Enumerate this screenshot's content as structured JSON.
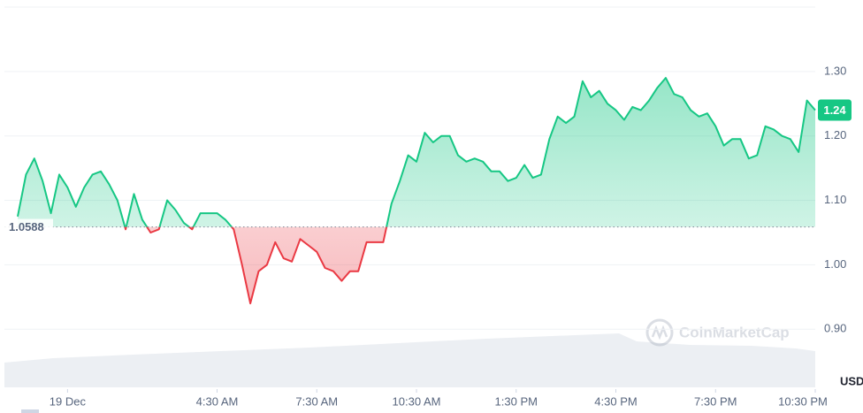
{
  "chart_data": {
    "type": "baseline-line",
    "x": [
      -1.5,
      -1.25,
      -1,
      -0.75,
      -0.5,
      -0.25,
      0,
      0.25,
      0.5,
      0.75,
      1,
      1.25,
      1.5,
      1.75,
      2,
      2.25,
      2.5,
      2.75,
      3,
      3.25,
      3.5,
      3.75,
      4,
      4.25,
      4.5,
      4.75,
      5,
      5.25,
      5.5,
      5.75,
      6,
      6.25,
      6.5,
      6.75,
      7,
      7.25,
      7.5,
      7.75,
      8,
      8.25,
      8.5,
      8.75,
      9,
      9.25,
      9.5,
      9.75,
      10,
      10.25,
      10.5,
      10.75,
      11,
      11.25,
      11.5,
      11.75,
      12,
      12.25,
      12.5,
      12.75,
      13,
      13.25,
      13.5,
      13.75,
      14,
      14.25,
      14.5,
      14.75,
      15,
      15.25,
      15.5,
      15.75,
      16,
      16.25,
      16.5,
      16.75,
      17,
      17.25,
      17.5,
      17.75,
      18,
      18.25,
      18.5,
      18.75,
      19,
      19.25,
      19.5,
      19.75,
      20,
      20.25,
      20.5,
      20.75,
      21,
      21.25,
      21.5,
      21.75,
      22,
      22.25,
      22.5
    ],
    "values": [
      1.075,
      1.14,
      1.165,
      1.13,
      1.08,
      1.14,
      1.12,
      1.09,
      1.12,
      1.14,
      1.145,
      1.125,
      1.1,
      1.055,
      1.11,
      1.07,
      1.05,
      1.055,
      1.1,
      1.085,
      1.065,
      1.055,
      1.08,
      1.08,
      1.08,
      1.07,
      1.055,
      1.0,
      0.94,
      0.99,
      1.0,
      1.035,
      1.01,
      1.005,
      1.04,
      1.03,
      1.02,
      0.995,
      0.99,
      0.975,
      0.99,
      0.99,
      1.035,
      1.035,
      1.035,
      1.095,
      1.13,
      1.17,
      1.16,
      1.205,
      1.19,
      1.2,
      1.2,
      1.17,
      1.16,
      1.165,
      1.16,
      1.145,
      1.145,
      1.13,
      1.135,
      1.155,
      1.135,
      1.14,
      1.195,
      1.23,
      1.22,
      1.23,
      1.285,
      1.26,
      1.27,
      1.25,
      1.24,
      1.225,
      1.245,
      1.24,
      1.255,
      1.275,
      1.29,
      1.265,
      1.26,
      1.24,
      1.23,
      1.235,
      1.215,
      1.185,
      1.195,
      1.195,
      1.165,
      1.17,
      1.215,
      1.21,
      1.2,
      1.195,
      1.175,
      1.255,
      1.24
    ],
    "xlim": [
      -1.5,
      22.5
    ],
    "xticks": [
      {
        "value": 0,
        "label": "19 Dec"
      },
      {
        "value": 4.5,
        "label": "4:30 AM"
      },
      {
        "value": 7.5,
        "label": "7:30 AM"
      },
      {
        "value": 10.5,
        "label": "10:30 AM"
      },
      {
        "value": 13.5,
        "label": "1:30 PM"
      },
      {
        "value": 16.5,
        "label": "4:30 PM"
      },
      {
        "value": 19.5,
        "label": "7:30 PM"
      },
      {
        "value": 22.5,
        "label": "10:30 PM"
      }
    ],
    "ylim": [
      0.807,
      1.4
    ],
    "yticks": [
      {
        "value": 0.9,
        "label": "0.90"
      },
      {
        "value": 1.0,
        "label": "1.00"
      },
      {
        "value": 1.1,
        "label": "1.10"
      },
      {
        "value": 1.2,
        "label": "1.20"
      },
      {
        "value": 1.3,
        "label": "1.30"
      }
    ],
    "baseline": {
      "value": 1.0588,
      "label": "1.0588"
    },
    "current": {
      "value": 1.24,
      "label": "1.24"
    },
    "up_color": "#16c784",
    "down_color": "#ea3943",
    "y_axis_label": "USD",
    "watermark": "CoinMarketCap",
    "grid": true
  }
}
